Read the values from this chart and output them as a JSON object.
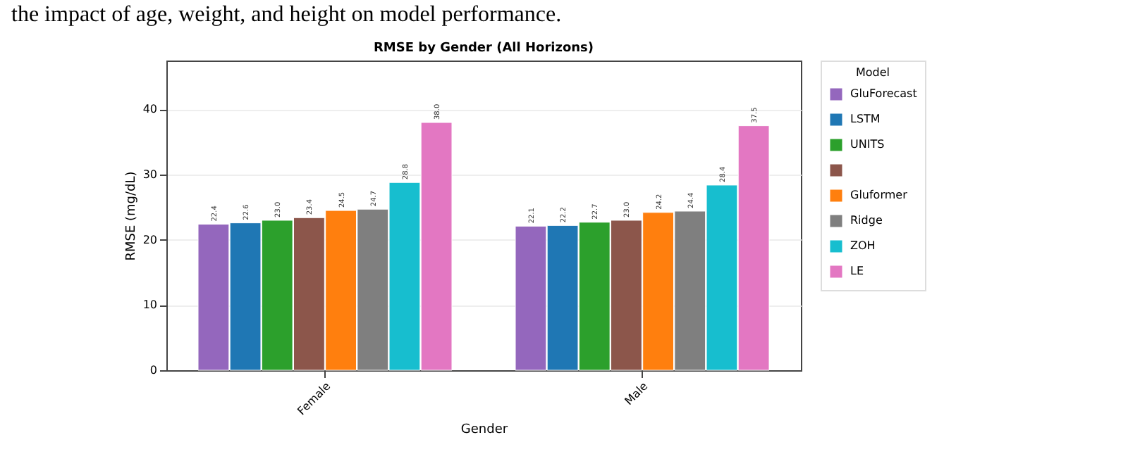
{
  "chart_data": {
    "type": "bar",
    "title": "RMSE by Gender (All Horizons)",
    "xlabel": "Gender",
    "ylabel": "RMSE (mg/dL)",
    "legend_title": "Model",
    "annotations": [
      "the impact of age, weight, and height on model performance."
    ],
    "categories": [
      "Female",
      "Male"
    ],
    "series": [
      {
        "name": "GluForecast",
        "color": "#9467bd",
        "values": [
          22.4,
          22.1
        ],
        "value_labels": [
          "22.4",
          "22.1"
        ]
      },
      {
        "name": "LSTM",
        "color": "#1f77b4",
        "values": [
          22.6,
          22.2
        ],
        "value_labels": [
          "22.6",
          "22.2"
        ]
      },
      {
        "name": "UNITS",
        "color": "#2ca02c",
        "values": [
          23.0,
          22.7
        ],
        "value_labels": [
          "23.0",
          "22.7"
        ]
      },
      {
        "color": "#8c564b",
        "values": [
          23.4,
          23.0
        ],
        "value_labels": [
          "23.4",
          "23.0"
        ]
      },
      {
        "name": "Gluformer",
        "color": "#ff7f0e",
        "values": [
          24.5,
          24.2
        ],
        "value_labels": [
          "24.5",
          "24.2"
        ]
      },
      {
        "name": "Ridge",
        "color": "#7f7f7f",
        "values": [
          24.7,
          24.4
        ],
        "value_labels": [
          "24.7",
          "24.4"
        ]
      },
      {
        "name": "ZOH",
        "color": "#17becf",
        "values": [
          28.8,
          28.4
        ],
        "value_labels": [
          "28.8",
          "28.4"
        ]
      },
      {
        "name": "LE",
        "color": "#e377c2",
        "values": [
          38.0,
          37.5
        ],
        "value_labels": [
          "38.0",
          "37.5"
        ]
      }
    ],
    "ylim": [
      0,
      47.5
    ],
    "yticks": [
      0,
      10,
      20,
      30,
      40
    ],
    "grid": "y",
    "legend": "top right"
  }
}
